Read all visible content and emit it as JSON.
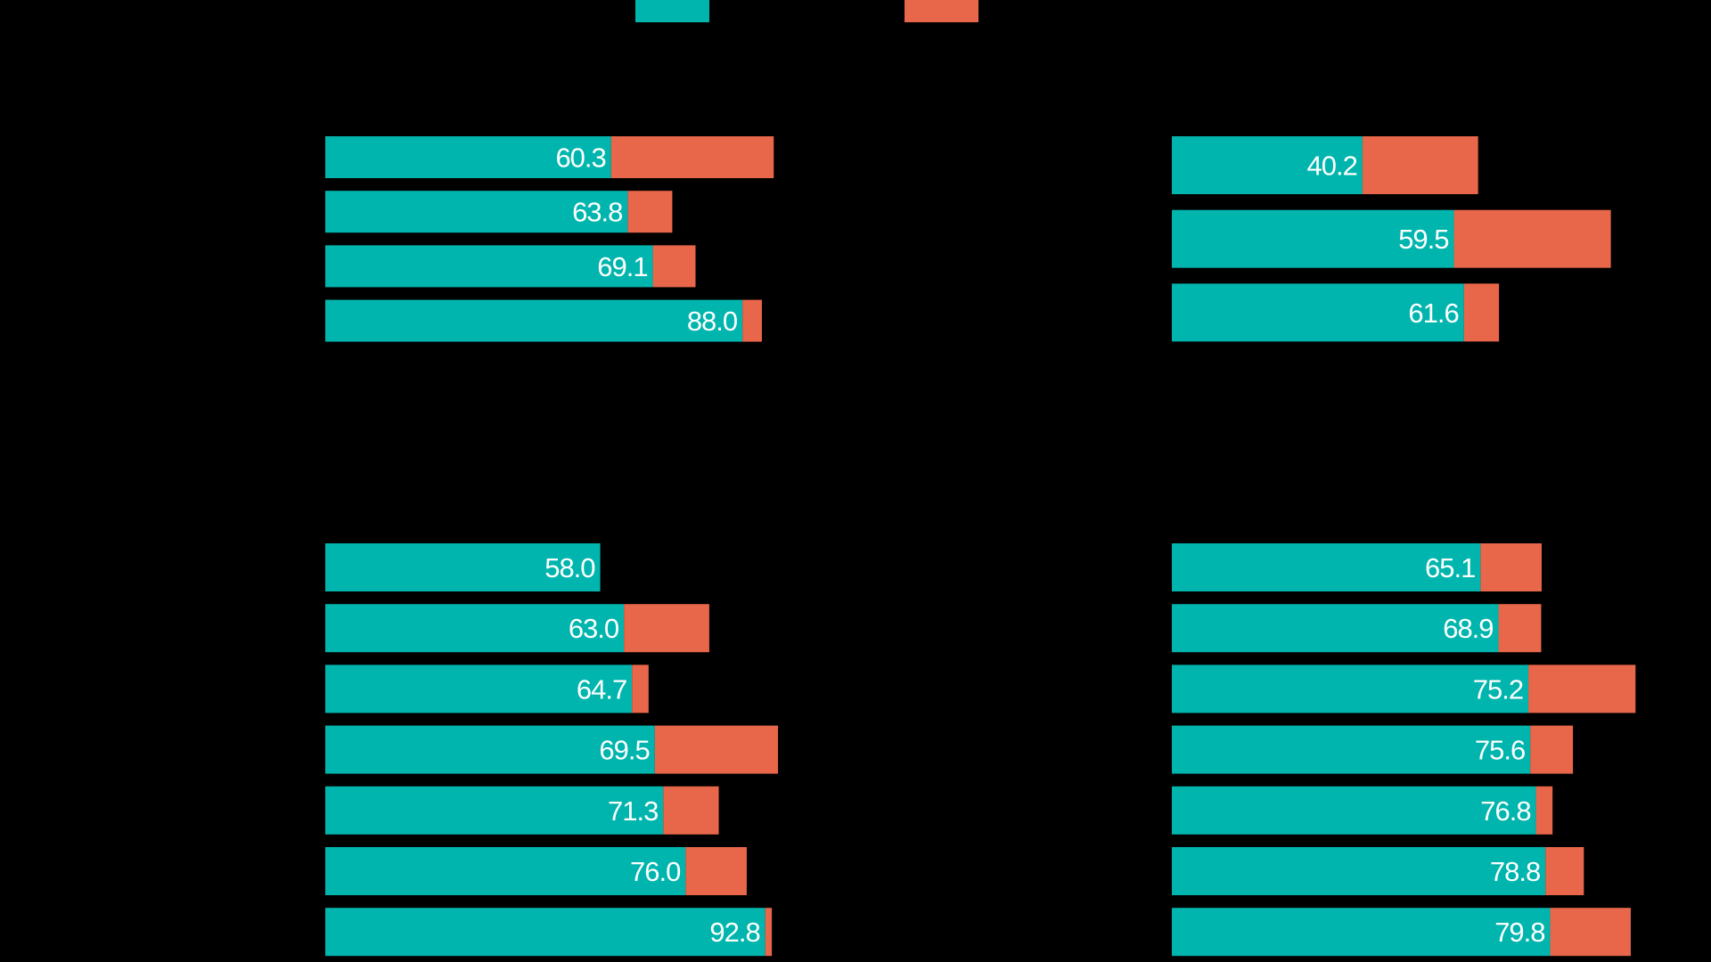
{
  "colors": {
    "primary": "#00B5AD",
    "secondary": "#E8674A",
    "background": "#000000"
  },
  "chart_data": [
    {
      "type": "bar",
      "orientation": "horizontal",
      "stacked": true,
      "panel": "top-left",
      "values_primary": [
        60.3,
        63.8,
        69.1,
        88.0
      ],
      "values_secondary": [
        34.3,
        9.4,
        9.0,
        4.1
      ],
      "data_labels": [
        "60.3",
        "63.8",
        "69.1",
        "88.0"
      ]
    },
    {
      "type": "bar",
      "orientation": "horizontal",
      "stacked": true,
      "panel": "top-right",
      "values_primary": [
        40.2,
        59.5,
        61.6
      ],
      "values_secondary": [
        24.4,
        33.1,
        7.4
      ],
      "data_labels": [
        "40.2",
        "59.5",
        "61.6"
      ]
    },
    {
      "type": "bar",
      "orientation": "horizontal",
      "stacked": true,
      "panel": "bottom-left",
      "values_primary": [
        58.0,
        63.0,
        64.7,
        69.5,
        71.3,
        76.0,
        92.8
      ],
      "values_secondary": [
        0,
        18.0,
        3.5,
        26.0,
        11.7,
        12.9,
        1.4
      ],
      "data_labels": [
        "58.0",
        "63.0",
        "64.7",
        "69.5",
        "71.3",
        "76.0",
        "92.8"
      ]
    },
    {
      "type": "bar",
      "orientation": "horizontal",
      "stacked": true,
      "panel": "bottom-right",
      "values_primary": [
        65.1,
        68.9,
        75.2,
        75.6,
        76.8,
        78.8,
        79.8
      ],
      "values_secondary": [
        12.9,
        9.0,
        22.6,
        9.0,
        3.5,
        8.1,
        17.0
      ],
      "data_labels": [
        "65.1",
        "68.9",
        "75.2",
        "75.6",
        "76.8",
        "78.8",
        "79.8"
      ]
    }
  ],
  "legend": {
    "placement": "top",
    "swatches": [
      "primary",
      "secondary"
    ]
  }
}
